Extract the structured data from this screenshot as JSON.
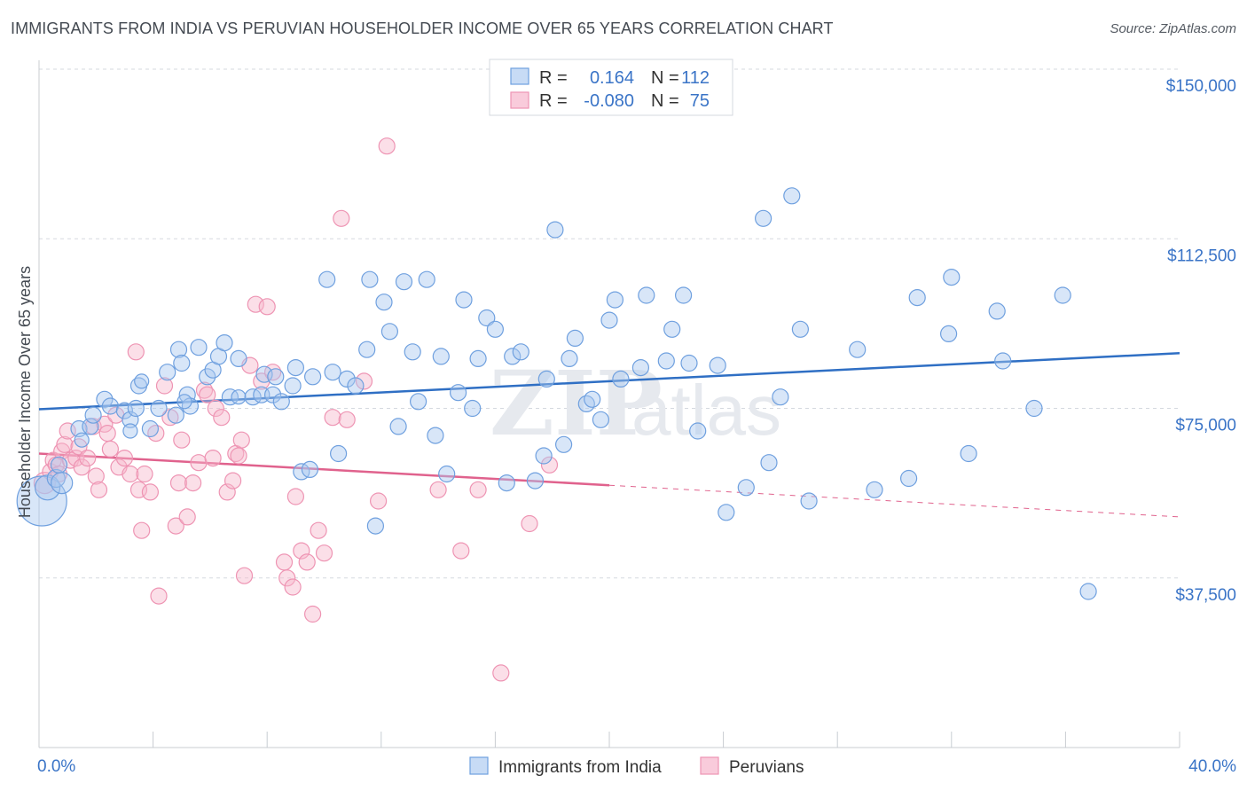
{
  "title": "IMMIGRANTS FROM INDIA VS PERUVIAN HOUSEHOLDER INCOME OVER 65 YEARS CORRELATION CHART",
  "source": "Source: ZipAtlas.com",
  "watermark": {
    "zip": "ZIP",
    "atlas": "atlas"
  },
  "colors": {
    "india": "#6fa0df",
    "india_line": "#2f6fc4",
    "peru": "#ee94b3",
    "peru_line": "#e0628d",
    "axis_label": "#3a74c7",
    "grid": "#d5d9df"
  },
  "legend": {
    "rows": [
      {
        "r_label": "R =",
        "r_value": "0.164",
        "n_label": "N =",
        "n_value": "112"
      },
      {
        "r_label": "R =",
        "r_value": "-0.080",
        "n_label": "N =",
        "n_value": "75"
      }
    ]
  },
  "bottom_legend": [
    "Immigrants from India",
    "Peruvians"
  ],
  "chart_data": {
    "type": "scatter",
    "title": "IMMIGRANTS FROM INDIA VS PERUVIAN HOUSEHOLDER INCOME OVER 65 YEARS CORRELATION CHART",
    "xlabel": "",
    "ylabel": "Householder Income Over 65 years",
    "xlim": [
      0,
      40
    ],
    "ylim": [
      0,
      150000
    ],
    "x_tick_labels": [
      "0.0%",
      "40.0%"
    ],
    "y_ticks": [
      37500,
      75000,
      112500,
      150000
    ],
    "y_tick_labels": [
      "$37,500",
      "$75,000",
      "$112,500",
      "$150,000"
    ],
    "grid": "horizontal dashed",
    "legend_position": "top-center",
    "series": [
      {
        "name": "Immigrants from India",
        "r": 0.164,
        "n": 112,
        "trend": {
          "x": [
            0,
            40
          ],
          "y": [
            74800,
            87200
          ]
        },
        "points": [
          [
            0.1,
            54500,
            28
          ],
          [
            0.3,
            57500,
            14
          ],
          [
            0.6,
            59500,
            10
          ],
          [
            0.8,
            58500,
            12
          ],
          [
            0.7,
            62500,
            9
          ],
          [
            1.4,
            70500,
            9
          ],
          [
            1.5,
            68000,
            8
          ],
          [
            1.8,
            71000,
            9
          ],
          [
            1.9,
            73500,
            9
          ],
          [
            2.3,
            77000,
            9
          ],
          [
            2.5,
            75500,
            9
          ],
          [
            3.0,
            74500,
            9
          ],
          [
            3.2,
            72500,
            9
          ],
          [
            3.4,
            75000,
            9
          ],
          [
            3.2,
            70000,
            8
          ],
          [
            3.5,
            80000,
            9
          ],
          [
            3.6,
            81000,
            8
          ],
          [
            3.9,
            70500,
            9
          ],
          [
            4.2,
            75000,
            9
          ],
          [
            4.5,
            83000,
            9
          ],
          [
            4.8,
            73500,
            9
          ],
          [
            4.9,
            88000,
            9
          ],
          [
            5.0,
            85000,
            9
          ],
          [
            5.2,
            78000,
            9
          ],
          [
            5.3,
            75500,
            9
          ],
          [
            5.1,
            76500,
            8
          ],
          [
            5.6,
            88500,
            9
          ],
          [
            5.9,
            82000,
            9
          ],
          [
            6.1,
            83500,
            9
          ],
          [
            6.3,
            86500,
            9
          ],
          [
            6.5,
            89500,
            9
          ],
          [
            6.7,
            77500,
            9
          ],
          [
            7.0,
            77500,
            8
          ],
          [
            7.0,
            86000,
            9
          ],
          [
            7.5,
            77500,
            9
          ],
          [
            7.8,
            78000,
            9
          ],
          [
            7.9,
            82500,
            9
          ],
          [
            8.2,
            78000,
            9
          ],
          [
            8.3,
            82000,
            9
          ],
          [
            8.5,
            76500,
            9
          ],
          [
            8.9,
            80000,
            9
          ],
          [
            9.0,
            84000,
            9
          ],
          [
            9.2,
            61000,
            9
          ],
          [
            9.5,
            61500,
            9
          ],
          [
            9.6,
            82000,
            9
          ],
          [
            10.1,
            103500,
            9
          ],
          [
            10.3,
            83000,
            9
          ],
          [
            10.5,
            65000,
            9
          ],
          [
            10.8,
            81500,
            9
          ],
          [
            11.1,
            80000,
            9
          ],
          [
            11.5,
            88000,
            9
          ],
          [
            11.6,
            103500,
            9
          ],
          [
            11.8,
            49000,
            9
          ],
          [
            12.1,
            98500,
            9
          ],
          [
            12.3,
            92000,
            9
          ],
          [
            12.6,
            71000,
            9
          ],
          [
            12.8,
            103000,
            9
          ],
          [
            13.1,
            87500,
            9
          ],
          [
            13.3,
            76500,
            9
          ],
          [
            13.6,
            103500,
            9
          ],
          [
            13.9,
            69000,
            9
          ],
          [
            14.1,
            86500,
            9
          ],
          [
            14.3,
            60500,
            9
          ],
          [
            14.7,
            78500,
            9
          ],
          [
            14.9,
            99000,
            9
          ],
          [
            15.2,
            75000,
            9
          ],
          [
            15.4,
            86000,
            9
          ],
          [
            15.7,
            95000,
            9
          ],
          [
            16.0,
            92500,
            9
          ],
          [
            16.4,
            58500,
            9
          ],
          [
            16.6,
            86500,
            9
          ],
          [
            16.9,
            87500,
            9
          ],
          [
            17.4,
            59000,
            9
          ],
          [
            17.7,
            64500,
            9
          ],
          [
            17.8,
            81500,
            9
          ],
          [
            18.1,
            114500,
            9
          ],
          [
            18.4,
            67000,
            9
          ],
          [
            18.6,
            86000,
            9
          ],
          [
            18.8,
            90500,
            9
          ],
          [
            19.2,
            76000,
            9
          ],
          [
            19.4,
            77000,
            9
          ],
          [
            19.7,
            72500,
            9
          ],
          [
            20.0,
            94500,
            9
          ],
          [
            20.2,
            99000,
            9
          ],
          [
            20.4,
            81500,
            9
          ],
          [
            21.1,
            84000,
            9
          ],
          [
            21.3,
            100000,
            9
          ],
          [
            22.2,
            92500,
            9
          ],
          [
            22.6,
            100000,
            9
          ],
          [
            22.0,
            85500,
            9
          ],
          [
            22.8,
            85000,
            9
          ],
          [
            23.1,
            70000,
            9
          ],
          [
            24.1,
            52000,
            9
          ],
          [
            23.8,
            84500,
            9
          ],
          [
            24.8,
            57500,
            9
          ],
          [
            25.4,
            117000,
            9
          ],
          [
            25.6,
            63000,
            9
          ],
          [
            26.0,
            77500,
            9
          ],
          [
            26.4,
            122000,
            9
          ],
          [
            26.7,
            92500,
            9
          ],
          [
            27.0,
            54500,
            9
          ],
          [
            28.7,
            88000,
            9
          ],
          [
            29.3,
            57000,
            9
          ],
          [
            30.5,
            59500,
            9
          ],
          [
            30.8,
            99500,
            9
          ],
          [
            31.9,
            91500,
            9
          ],
          [
            32.0,
            104000,
            9
          ],
          [
            32.6,
            65000,
            9
          ],
          [
            33.6,
            96500,
            9
          ],
          [
            33.8,
            85500,
            9
          ],
          [
            34.9,
            75000,
            9
          ],
          [
            35.9,
            100000,
            9
          ],
          [
            36.8,
            34500,
            9
          ]
        ]
      },
      {
        "name": "Peruvians",
        "r": -0.08,
        "n": 75,
        "trend": {
          "x": [
            0,
            20
          ],
          "y": [
            65000,
            58000
          ]
        },
        "trend_extension": {
          "x": [
            20,
            40
          ],
          "y": [
            58000,
            51000
          ]
        },
        "points": [
          [
            0.2,
            58500,
            12
          ],
          [
            0.4,
            61000,
            9
          ],
          [
            0.5,
            63500,
            9
          ],
          [
            0.6,
            62500,
            9
          ],
          [
            0.7,
            60500,
            9
          ],
          [
            0.8,
            65500,
            9
          ],
          [
            0.9,
            67000,
            9
          ],
          [
            1.0,
            70000,
            9
          ],
          [
            1.1,
            63500,
            9
          ],
          [
            1.3,
            64000,
            9
          ],
          [
            1.4,
            66500,
            9
          ],
          [
            1.5,
            62000,
            9
          ],
          [
            1.7,
            64000,
            9
          ],
          [
            1.9,
            71000,
            9
          ],
          [
            2.0,
            60000,
            9
          ],
          [
            2.1,
            57000,
            9
          ],
          [
            2.3,
            71500,
            9
          ],
          [
            2.4,
            69500,
            9
          ],
          [
            2.5,
            66000,
            9
          ],
          [
            2.7,
            73500,
            9
          ],
          [
            2.8,
            62000,
            9
          ],
          [
            3.0,
            64000,
            9
          ],
          [
            3.2,
            60500,
            9
          ],
          [
            3.4,
            87500,
            9
          ],
          [
            3.5,
            57000,
            9
          ],
          [
            3.6,
            48000,
            9
          ],
          [
            3.7,
            60500,
            9
          ],
          [
            3.9,
            56500,
            9
          ],
          [
            4.1,
            69500,
            9
          ],
          [
            4.2,
            33500,
            9
          ],
          [
            4.4,
            80000,
            9
          ],
          [
            4.6,
            73000,
            9
          ],
          [
            4.8,
            49000,
            9
          ],
          [
            4.9,
            58500,
            9
          ],
          [
            5.0,
            68000,
            9
          ],
          [
            5.2,
            51000,
            9
          ],
          [
            5.4,
            58500,
            9
          ],
          [
            5.6,
            63000,
            9
          ],
          [
            5.8,
            79000,
            9
          ],
          [
            5.9,
            78000,
            9
          ],
          [
            6.1,
            64000,
            9
          ],
          [
            6.2,
            75000,
            9
          ],
          [
            6.4,
            73000,
            9
          ],
          [
            6.6,
            56500,
            9
          ],
          [
            6.8,
            59000,
            9
          ],
          [
            6.9,
            65000,
            9
          ],
          [
            7.0,
            64500,
            9
          ],
          [
            7.1,
            68000,
            9
          ],
          [
            7.2,
            38000,
            9
          ],
          [
            7.4,
            84500,
            9
          ],
          [
            7.6,
            98000,
            9
          ],
          [
            7.8,
            81000,
            9
          ],
          [
            8.0,
            97500,
            9
          ],
          [
            8.2,
            83000,
            9
          ],
          [
            8.6,
            41000,
            9
          ],
          [
            8.7,
            37500,
            9
          ],
          [
            8.9,
            35500,
            9
          ],
          [
            9.0,
            55500,
            9
          ],
          [
            9.2,
            43500,
            9
          ],
          [
            9.4,
            41000,
            9
          ],
          [
            9.6,
            29500,
            9
          ],
          [
            9.8,
            48000,
            9
          ],
          [
            10.0,
            43000,
            9
          ],
          [
            10.3,
            73000,
            9
          ],
          [
            10.6,
            117000,
            9
          ],
          [
            10.8,
            72500,
            9
          ],
          [
            11.4,
            81000,
            9
          ],
          [
            11.9,
            54500,
            9
          ],
          [
            12.2,
            133000,
            9
          ],
          [
            14.0,
            57000,
            9
          ],
          [
            14.8,
            43500,
            9
          ],
          [
            15.4,
            57000,
            9
          ],
          [
            16.2,
            16500,
            9
          ],
          [
            17.2,
            49500,
            9
          ],
          [
            17.9,
            62500,
            9
          ]
        ]
      }
    ]
  }
}
